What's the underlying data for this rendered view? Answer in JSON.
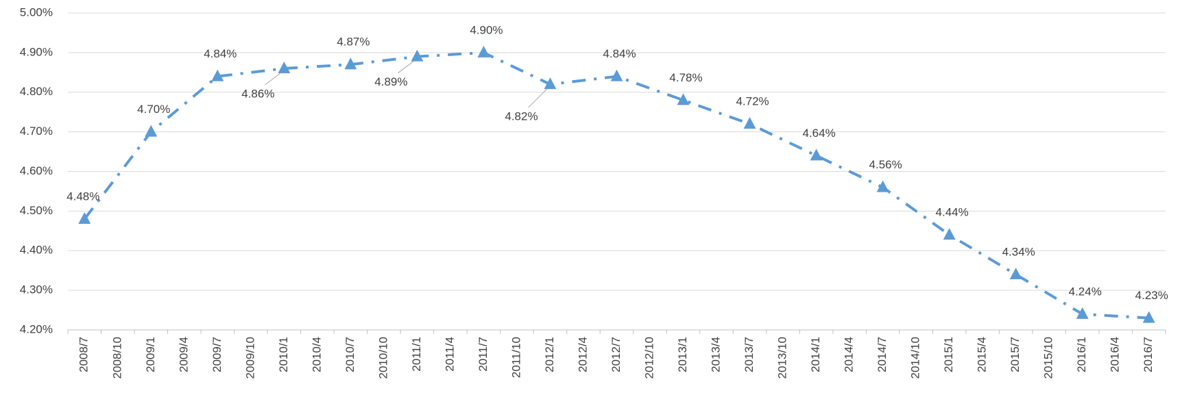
{
  "chart_data": {
    "type": "line",
    "x": [
      "2008/7",
      "2009/1",
      "2009/7",
      "2010/1",
      "2010/7",
      "2011/1",
      "2011/7",
      "2012/1",
      "2012/7",
      "2013/1",
      "2013/7",
      "2014/1",
      "2014/7",
      "2015/1",
      "2015/7",
      "2016/1",
      "2016/7"
    ],
    "xticks": [
      "2008/7",
      "2008/10",
      "2009/1",
      "2009/4",
      "2009/7",
      "2009/10",
      "2010/1",
      "2010/4",
      "2010/7",
      "2010/10",
      "2011/1",
      "2011/4",
      "2011/7",
      "2011/10",
      "2012/1",
      "2012/4",
      "2012/7",
      "2012/10",
      "2013/1",
      "2013/4",
      "2013/7",
      "2013/10",
      "2014/1",
      "2014/4",
      "2014/7",
      "2014/10",
      "2015/1",
      "2015/4",
      "2015/7",
      "2015/10",
      "2016/1",
      "2016/4",
      "2016/7"
    ],
    "series": [
      {
        "color": "#5b9bd5",
        "values": [
          4.48,
          4.7,
          4.84,
          4.86,
          4.87,
          4.89,
          4.9,
          4.82,
          4.84,
          4.78,
          4.72,
          4.64,
          4.56,
          4.44,
          4.34,
          4.24,
          4.23
        ],
        "value_labels": [
          "4.48%",
          "4.70%",
          "4.84%",
          "4.86%",
          "4.87%",
          "4.89%",
          "4.90%",
          "4.82%",
          "4.84%",
          "4.78%",
          "4.72%",
          "4.64%",
          "4.56%",
          "4.44%",
          "4.34%",
          "4.24%",
          "4.23%"
        ]
      }
    ],
    "ylim": [
      4.2,
      5.0
    ],
    "yticks": [
      {
        "value": 4.2,
        "label": "4.20%"
      },
      {
        "value": 4.3,
        "label": "4.30%"
      },
      {
        "value": 4.4,
        "label": "4.40%"
      },
      {
        "value": 4.5,
        "label": "4.50%"
      },
      {
        "value": 4.6,
        "label": "4.60%"
      },
      {
        "value": 4.7,
        "label": "4.70%"
      },
      {
        "value": 4.8,
        "label": "4.80%"
      },
      {
        "value": 4.9,
        "label": "4.90%"
      },
      {
        "value": 5.0,
        "label": "5.00%"
      }
    ],
    "grid": true
  }
}
